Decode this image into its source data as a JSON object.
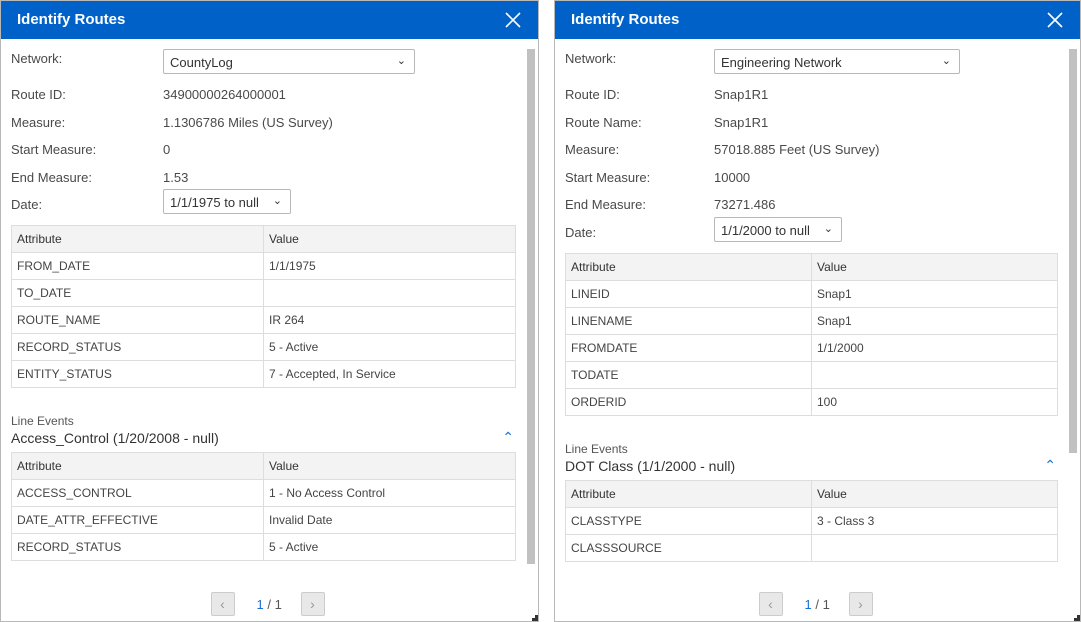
{
  "panels": [
    {
      "title": "Identify Routes",
      "network_label": "Network:",
      "network_value": "CountyLog",
      "date_label": "Date:",
      "date_value": "1/1/1975 to null",
      "fields": [
        {
          "label": "Route ID:",
          "value": "34900000264000001"
        },
        {
          "label": "Measure:",
          "value": "1.1306786 Miles (US Survey)"
        },
        {
          "label": "Start Measure:",
          "value": "0"
        },
        {
          "label": "End Measure:",
          "value": "1.53"
        }
      ],
      "table_headers": [
        "Attribute",
        "Value"
      ],
      "rows": [
        [
          "FROM_DATE",
          "1/1/1975"
        ],
        [
          "TO_DATE",
          ""
        ],
        [
          "ROUTE_NAME",
          "IR 264"
        ],
        [
          "RECORD_STATUS",
          "5 - Active"
        ],
        [
          "ENTITY_STATUS",
          "7 - Accepted, In Service"
        ]
      ],
      "line_events_label": "Line Events",
      "event_title": "Access_Control (1/20/2008 - null)",
      "event_rows": [
        [
          "ACCESS_CONTROL",
          "1 - No Access Control"
        ],
        [
          "DATE_ATTR_EFFECTIVE",
          "Invalid Date"
        ],
        [
          "RECORD_STATUS",
          "5 - Active"
        ]
      ],
      "page_current": "1",
      "page_sep": "/ 1"
    },
    {
      "title": "Identify Routes",
      "network_label": "Network:",
      "network_value": "Engineering Network",
      "date_label": "Date:",
      "date_value": "1/1/2000 to null",
      "fields": [
        {
          "label": "Route ID:",
          "value": "Snap1R1"
        },
        {
          "label": "Route Name:",
          "value": "Snap1R1"
        },
        {
          "label": "Measure:",
          "value": "57018.885 Feet (US Survey)"
        },
        {
          "label": "Start Measure:",
          "value": "10000"
        },
        {
          "label": "End Measure:",
          "value": "73271.486"
        }
      ],
      "table_headers": [
        "Attribute",
        "Value"
      ],
      "rows": [
        [
          "LINEID",
          "Snap1"
        ],
        [
          "LINENAME",
          "Snap1"
        ],
        [
          "FROMDATE",
          "1/1/2000"
        ],
        [
          "TODATE",
          ""
        ],
        [
          "ORDERID",
          "100"
        ]
      ],
      "line_events_label": "Line Events",
      "event_title": "DOT Class (1/1/2000 - null)",
      "event_rows": [
        [
          "CLASSTYPE",
          "3 - Class 3"
        ],
        [
          "CLASSSOURCE",
          ""
        ]
      ],
      "page_current": "1",
      "page_sep": "/ 1"
    }
  ],
  "colors": {
    "header": "#0062c9",
    "accent": "#1a6fd6"
  }
}
